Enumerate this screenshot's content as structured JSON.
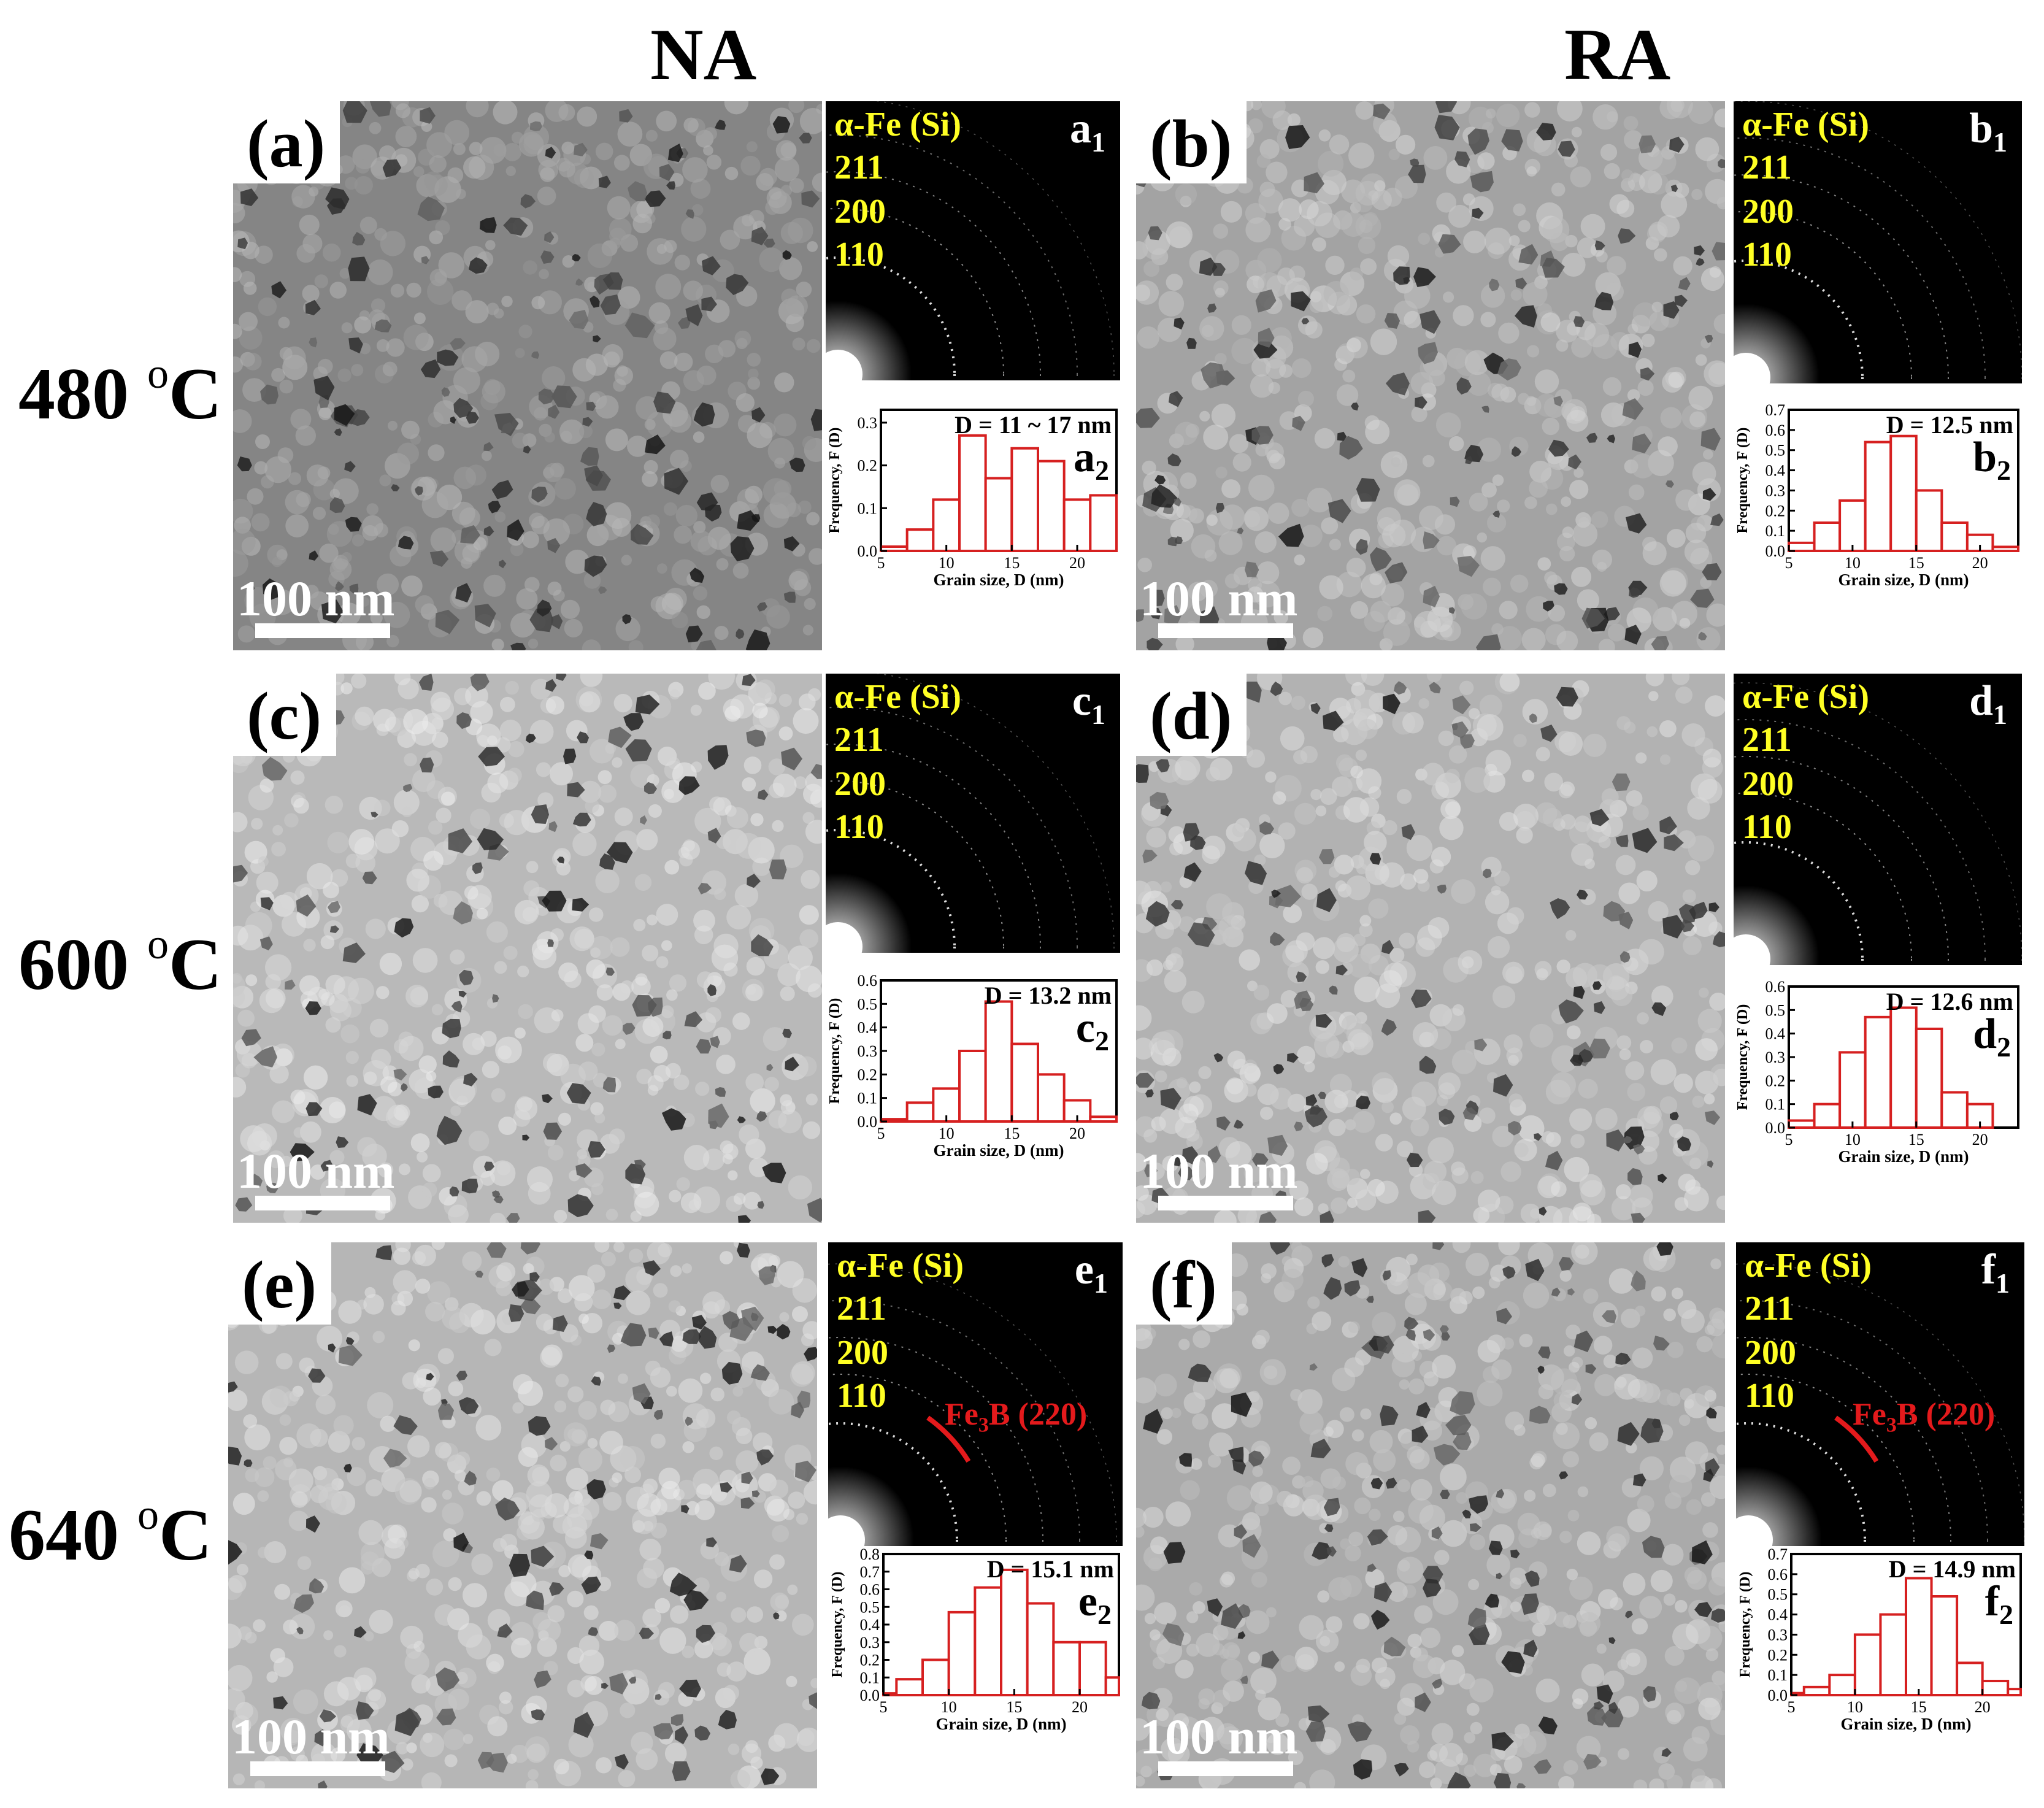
{
  "columns": [
    "NA",
    "RA"
  ],
  "rows": [
    {
      "label": "480",
      "unit_sup": "o",
      "unit": "C"
    },
    {
      "label": "600",
      "unit_sup": "o",
      "unit": "C"
    },
    {
      "label": "640",
      "unit_sup": "o",
      "unit": "C"
    }
  ],
  "scale_bar_label": "100 nm",
  "saed": {
    "phase": "α-Fe (Si)",
    "reflections": [
      "211",
      "200",
      "110"
    ],
    "secondary_phase": {
      "name": "Fe",
      "sub": "3",
      "rest": "B (220)"
    }
  },
  "panels": [
    {
      "tag": "(a)",
      "sub_letter": "a",
      "dark": 0.55
    },
    {
      "tag": "(b)",
      "sub_letter": "b",
      "dark": 0.35
    },
    {
      "tag": "(c)",
      "sub_letter": "c",
      "dark": 0.2
    },
    {
      "tag": "(d)",
      "sub_letter": "d",
      "dark": 0.25
    },
    {
      "tag": "(e)",
      "sub_letter": "e",
      "dark": 0.22,
      "fe3b": true
    },
    {
      "tag": "(f)",
      "sub_letter": "f",
      "dark": 0.3,
      "fe3b": true
    }
  ],
  "chart_data": [
    {
      "panel": "a2",
      "type": "bar",
      "d_label": "D = 11 ~ 17 nm",
      "ylabel": "Frequency, F (D)",
      "xlabel": "Grain size, D (nm)",
      "xlim": [
        5,
        23
      ],
      "ylim": [
        0,
        0.33
      ],
      "yticks": [
        0.0,
        0.1,
        0.2,
        0.3
      ],
      "xticks": [
        5,
        10,
        15,
        20
      ],
      "bin_edges": [
        5,
        7,
        9,
        11,
        13,
        15,
        17,
        19,
        21,
        23
      ],
      "values": [
        0.01,
        0.05,
        0.12,
        0.27,
        0.17,
        0.24,
        0.21,
        0.12,
        0.13
      ]
    },
    {
      "panel": "b2",
      "type": "bar",
      "d_label": "D = 12.5 nm",
      "ylabel": "Frequency, F (D)",
      "xlabel": "Grain size, D (nm)",
      "xlim": [
        5,
        23
      ],
      "ylim": [
        0,
        0.7
      ],
      "yticks": [
        0.0,
        0.1,
        0.2,
        0.3,
        0.4,
        0.5,
        0.6,
        0.7
      ],
      "xticks": [
        5,
        10,
        15,
        20
      ],
      "bin_edges": [
        5,
        7,
        9,
        11,
        13,
        15,
        17,
        19,
        21,
        23
      ],
      "values": [
        0.04,
        0.14,
        0.25,
        0.54,
        0.57,
        0.3,
        0.14,
        0.08,
        0.02
      ]
    },
    {
      "panel": "c2",
      "type": "bar",
      "d_label": "D = 13.2 nm",
      "ylabel": "Frequency, F (D)",
      "xlabel": "Grain size, D (nm)",
      "xlim": [
        5,
        23
      ],
      "ylim": [
        0,
        0.6
      ],
      "yticks": [
        0.0,
        0.1,
        0.2,
        0.3,
        0.4,
        0.5,
        0.6
      ],
      "xticks": [
        5,
        10,
        15,
        20
      ],
      "bin_edges": [
        5,
        7,
        9,
        11,
        13,
        15,
        17,
        19,
        21,
        23
      ],
      "values": [
        0.01,
        0.08,
        0.14,
        0.3,
        0.51,
        0.33,
        0.2,
        0.09,
        0.02
      ]
    },
    {
      "panel": "d2",
      "type": "bar",
      "d_label": "D = 12.6 nm",
      "ylabel": "Frequency, F (D)",
      "xlabel": "Grain size, D (nm)",
      "xlim": [
        5,
        23
      ],
      "ylim": [
        0,
        0.6
      ],
      "yticks": [
        0.0,
        0.1,
        0.2,
        0.3,
        0.4,
        0.5,
        0.6
      ],
      "xticks": [
        5,
        10,
        15,
        20
      ],
      "bin_edges": [
        5,
        7,
        9,
        11,
        13,
        15,
        17,
        19,
        21
      ],
      "values": [
        0.03,
        0.1,
        0.32,
        0.47,
        0.51,
        0.42,
        0.15,
        0.1
      ]
    },
    {
      "panel": "e2",
      "type": "bar",
      "d_label": "D = 15.1 nm",
      "ylabel": "Frequency, F (D)",
      "xlabel": "Grain size, D (nm)",
      "xlim": [
        5,
        23
      ],
      "ylim": [
        0,
        0.8
      ],
      "yticks": [
        0.0,
        0.1,
        0.2,
        0.3,
        0.4,
        0.5,
        0.6,
        0.7,
        0.8
      ],
      "xticks": [
        5,
        10,
        15,
        20
      ],
      "bin_edges": [
        5,
        6,
        8,
        10,
        12,
        14,
        16,
        18,
        20,
        22,
        23
      ],
      "values": [
        0.01,
        0.09,
        0.2,
        0.47,
        0.61,
        0.71,
        0.52,
        0.3,
        0.3,
        0.1
      ]
    },
    {
      "panel": "f2",
      "type": "bar",
      "d_label": "D = 14.9 nm",
      "ylabel": "Frequency, F (D)",
      "xlabel": "Grain size, D (nm)",
      "xlim": [
        5,
        23
      ],
      "ylim": [
        0,
        0.7
      ],
      "yticks": [
        0.0,
        0.1,
        0.2,
        0.3,
        0.4,
        0.5,
        0.6,
        0.7
      ],
      "xticks": [
        5,
        10,
        15,
        20
      ],
      "bin_edges": [
        5,
        6,
        8,
        10,
        12,
        14,
        16,
        18,
        20,
        22,
        23
      ],
      "values": [
        0.01,
        0.04,
        0.1,
        0.3,
        0.4,
        0.58,
        0.49,
        0.16,
        0.07,
        0.03
      ]
    }
  ]
}
